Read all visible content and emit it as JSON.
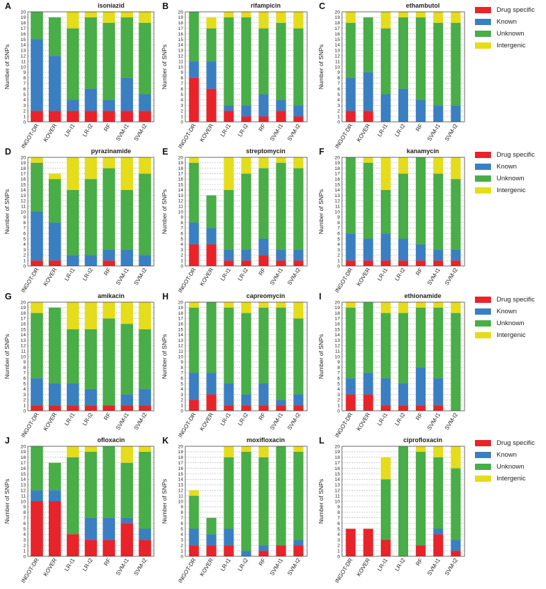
{
  "chart_data": {
    "type": "bar",
    "stacked": true,
    "ylabel": "Number of SNPs",
    "categories": [
      "INGOT-DR",
      "KOVER",
      "LR-I1",
      "LR-I2",
      "RF",
      "SVM-I1",
      "SVM-I2"
    ],
    "series_names": [
      "Drug specific",
      "Known",
      "Unknown",
      "Intergenic"
    ],
    "colors": [
      "#e8232a",
      "#3a7fc1",
      "#49ad48",
      "#e5dc1b"
    ],
    "legends": [
      {
        "items": [
          "Drug specific",
          "Known",
          "Unknown",
          "Intergenic"
        ]
      },
      {
        "items": [
          "Drug specific",
          "Known",
          "Unknown",
          "Intergenic"
        ]
      },
      {
        "items": [
          "Drug specific",
          "Known",
          "Unknown",
          "Intergenic"
        ]
      },
      {
        "items": [
          "Drug specific",
          "Known",
          "Unknown",
          "Intergenic"
        ]
      }
    ],
    "panels": [
      {
        "letter": "A",
        "title": "isoniazid",
        "ylim": [
          0,
          20
        ],
        "stacks": [
          [
            2,
            13,
            5,
            0
          ],
          [
            2,
            10,
            7,
            0
          ],
          [
            2,
            2,
            13,
            3
          ],
          [
            2,
            4,
            13,
            1
          ],
          [
            2,
            2,
            14,
            2
          ],
          [
            2,
            6,
            11,
            1
          ],
          [
            2,
            3,
            13,
            2
          ]
        ]
      },
      {
        "letter": "B",
        "title": "rifampicin",
        "ylim": [
          0,
          20
        ],
        "stacks": [
          [
            8,
            3,
            9,
            0
          ],
          [
            6,
            5,
            6,
            2
          ],
          [
            2,
            1,
            16,
            1
          ],
          [
            1,
            2,
            16,
            1
          ],
          [
            1,
            4,
            12,
            3
          ],
          [
            2,
            2,
            14,
            2
          ],
          [
            1,
            2,
            14,
            3
          ]
        ]
      },
      {
        "letter": "C",
        "title": "ethambutol",
        "ylim": [
          0,
          20
        ],
        "stacks": [
          [
            2,
            6,
            10,
            2
          ],
          [
            2,
            7,
            10,
            0
          ],
          [
            0,
            5,
            12,
            3
          ],
          [
            0,
            6,
            13,
            1
          ],
          [
            0,
            4,
            15,
            1
          ],
          [
            0,
            3,
            15,
            2
          ],
          [
            0,
            3,
            15,
            2
          ]
        ]
      },
      {
        "letter": "D",
        "title": "pyrazinamide",
        "ylim": [
          0,
          20
        ],
        "stacks": [
          [
            1,
            9,
            9,
            1
          ],
          [
            1,
            7,
            8,
            1
          ],
          [
            0,
            2,
            12,
            6
          ],
          [
            0,
            2,
            14,
            4
          ],
          [
            1,
            2,
            15,
            2
          ],
          [
            0,
            3,
            11,
            6
          ],
          [
            0,
            2,
            15,
            3
          ]
        ]
      },
      {
        "letter": "E",
        "title": "streptomycin",
        "ylim": [
          0,
          20
        ],
        "stacks": [
          [
            4,
            4,
            11,
            1
          ],
          [
            4,
            3,
            6,
            0
          ],
          [
            1,
            2,
            11,
            6
          ],
          [
            1,
            2,
            14,
            3
          ],
          [
            2,
            3,
            13,
            2
          ],
          [
            1,
            2,
            16,
            1
          ],
          [
            1,
            2,
            15,
            2
          ]
        ]
      },
      {
        "letter": "F",
        "title": "kanamycin",
        "ylim": [
          0,
          20
        ],
        "stacks": [
          [
            1,
            5,
            14,
            0
          ],
          [
            1,
            4,
            14,
            1
          ],
          [
            1,
            5,
            8,
            6
          ],
          [
            1,
            4,
            12,
            3
          ],
          [
            1,
            3,
            16,
            0
          ],
          [
            1,
            2,
            14,
            3
          ],
          [
            1,
            2,
            13,
            4
          ]
        ]
      },
      {
        "letter": "G",
        "title": "amikacin",
        "ylim": [
          0,
          20
        ],
        "stacks": [
          [
            1,
            5,
            12,
            2
          ],
          [
            1,
            4,
            14,
            0
          ],
          [
            1,
            4,
            10,
            5
          ],
          [
            1,
            3,
            11,
            5
          ],
          [
            1,
            0,
            16,
            3
          ],
          [
            1,
            2,
            13,
            4
          ],
          [
            1,
            3,
            11,
            5
          ]
        ]
      },
      {
        "letter": "H",
        "title": "capreomycin",
        "ylim": [
          0,
          20
        ],
        "stacks": [
          [
            2,
            5,
            12,
            1
          ],
          [
            3,
            4,
            13,
            0
          ],
          [
            1,
            4,
            14,
            1
          ],
          [
            1,
            2,
            15,
            2
          ],
          [
            1,
            4,
            14,
            1
          ],
          [
            1,
            1,
            17,
            1
          ],
          [
            1,
            2,
            14,
            3
          ]
        ]
      },
      {
        "letter": "I",
        "title": "ethionamide",
        "ylim": [
          0,
          20
        ],
        "stacks": [
          [
            3,
            3,
            13,
            1
          ],
          [
            3,
            4,
            13,
            0
          ],
          [
            1,
            5,
            12,
            2
          ],
          [
            1,
            4,
            13,
            2
          ],
          [
            1,
            7,
            11,
            1
          ],
          [
            1,
            5,
            13,
            1
          ],
          [
            0,
            0,
            18,
            2
          ]
        ]
      },
      {
        "letter": "J",
        "title": "ofloxacin",
        "ylim": [
          0,
          20
        ],
        "stacks": [
          [
            10,
            2,
            8,
            0
          ],
          [
            10,
            2,
            5,
            0
          ],
          [
            4,
            0,
            14,
            2
          ],
          [
            3,
            4,
            12,
            1
          ],
          [
            3,
            4,
            13,
            0
          ],
          [
            6,
            1,
            10,
            3
          ],
          [
            3,
            2,
            14,
            1
          ]
        ]
      },
      {
        "letter": "K",
        "title": "moxifloxacin",
        "ylim": [
          0,
          20
        ],
        "stacks": [
          [
            2,
            3,
            6,
            1
          ],
          [
            2,
            2,
            3,
            0
          ],
          [
            2,
            3,
            13,
            2
          ],
          [
            0,
            1,
            18,
            1
          ],
          [
            1,
            1,
            16,
            2
          ],
          [
            2,
            0,
            18,
            0
          ],
          [
            2,
            1,
            16,
            1
          ]
        ]
      },
      {
        "letter": "L",
        "title": "ciprofloxacin",
        "ylim": [
          0,
          20
        ],
        "stacks": [
          [
            5,
            0,
            0,
            0
          ],
          [
            5,
            0,
            0,
            0
          ],
          [
            3,
            0,
            11,
            4
          ],
          [
            0,
            0,
            20,
            0
          ],
          [
            2,
            0,
            17,
            1
          ],
          [
            4,
            1,
            13,
            2
          ],
          [
            1,
            2,
            13,
            4
          ]
        ]
      }
    ]
  }
}
